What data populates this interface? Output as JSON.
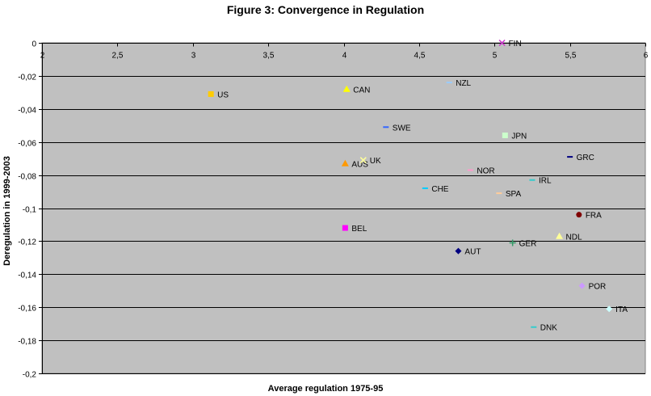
{
  "chart_data": {
    "type": "scatter",
    "title": "Figure 3: Convergence in Regulation",
    "xlabel": "Average regulation 1975-95",
    "ylabel": "Deregulation in 1999-2003",
    "xlim": [
      2,
      6
    ],
    "ylim": [
      -0.2,
      0
    ],
    "x_ticks": [
      "2",
      "2,5",
      "3",
      "3,5",
      "4",
      "4,5",
      "5",
      "5,5",
      "6"
    ],
    "y_ticks": [
      "0",
      "-0,02",
      "-0,04",
      "-0,06",
      "-0,08",
      "-0,1",
      "-0,12",
      "-0,14",
      "-0,16",
      "-0,18",
      "-0,2"
    ],
    "grid": "horizontal",
    "plot_background": "#C0C0C0",
    "points": [
      {
        "label": "FIN",
        "x": 5.05,
        "y": 0.0,
        "marker": "x",
        "color": "#CC33CC"
      },
      {
        "label": "NZL",
        "x": 4.7,
        "y": -0.024,
        "marker": "dash",
        "color": "#99CCFF"
      },
      {
        "label": "US",
        "x": 3.12,
        "y": -0.031,
        "marker": "square",
        "color": "#FFCC00"
      },
      {
        "label": "CAN",
        "x": 4.02,
        "y": -0.028,
        "marker": "triangle",
        "color": "#FFFF00"
      },
      {
        "label": "SWE",
        "x": 4.28,
        "y": -0.051,
        "marker": "dash",
        "color": "#3366FF"
      },
      {
        "label": "JPN",
        "x": 5.07,
        "y": -0.056,
        "marker": "square",
        "color": "#CCFFCC"
      },
      {
        "label": "GRC",
        "x": 5.5,
        "y": -0.069,
        "marker": "dash",
        "color": "#000080"
      },
      {
        "label": "AUS",
        "x": 4.01,
        "y": -0.073,
        "marker": "triangle",
        "color": "#FF9900"
      },
      {
        "label": "UK",
        "x": 4.13,
        "y": -0.071,
        "marker": "x",
        "color": "#FFFF99"
      },
      {
        "label": "NOR",
        "x": 4.84,
        "y": -0.077,
        "marker": "dash",
        "color": "#FF99CC"
      },
      {
        "label": "IRL",
        "x": 5.25,
        "y": -0.083,
        "marker": "dash",
        "color": "#33CCCC"
      },
      {
        "label": "CHE",
        "x": 4.54,
        "y": -0.088,
        "marker": "dash",
        "color": "#00CCFF"
      },
      {
        "label": "SPA",
        "x": 5.03,
        "y": -0.091,
        "marker": "dash",
        "color": "#FFCC99"
      },
      {
        "label": "FRA",
        "x": 5.56,
        "y": -0.104,
        "marker": "circle",
        "color": "#800000"
      },
      {
        "label": "BEL",
        "x": 4.01,
        "y": -0.112,
        "marker": "square",
        "color": "#FF00FF"
      },
      {
        "label": "NDL",
        "x": 5.43,
        "y": -0.117,
        "marker": "triangle",
        "color": "#FFFF99"
      },
      {
        "label": "GER",
        "x": 5.12,
        "y": -0.121,
        "marker": "plus",
        "color": "#339966"
      },
      {
        "label": "AUT",
        "x": 4.76,
        "y": -0.126,
        "marker": "diamond",
        "color": "#000080"
      },
      {
        "label": "POR",
        "x": 5.58,
        "y": -0.147,
        "marker": "diamond",
        "color": "#CC99FF"
      },
      {
        "label": "ITA",
        "x": 5.76,
        "y": -0.161,
        "marker": "diamond",
        "color": "#CCFFFF"
      },
      {
        "label": "DNK",
        "x": 5.26,
        "y": -0.172,
        "marker": "dash",
        "color": "#33CCCC"
      }
    ]
  }
}
